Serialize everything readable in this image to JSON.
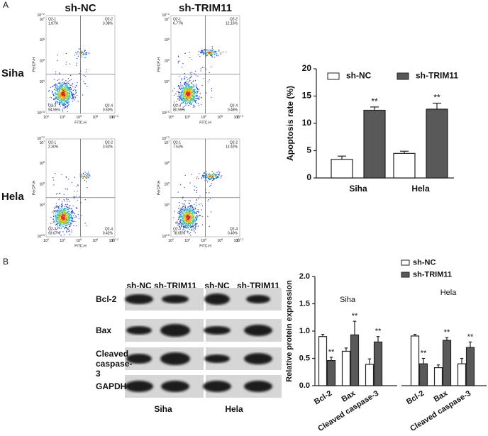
{
  "panels": [
    "A",
    "B"
  ],
  "flow": {
    "columns": [
      "sh-NC",
      "sh-TRIM11"
    ],
    "rows": [
      "Siha",
      "Hela"
    ],
    "x_label": "FITC-H",
    "y_label": "PerCP-H",
    "x_ticks": [
      {
        "base": "10",
        "exp": "3"
      },
      {
        "base": "10",
        "exp": "4"
      },
      {
        "base": "10",
        "exp": "5"
      },
      {
        "base": "10",
        "exp": "6"
      },
      {
        "base": "10",
        "exp": "7"
      },
      {
        "base": "10",
        "exp": "7.2"
      }
    ],
    "y_ticks": [
      {
        "base": "10",
        "exp": "2.5"
      },
      {
        "base": "10",
        "exp": "4"
      },
      {
        "base": "10",
        "exp": "5"
      },
      {
        "base": "10",
        "exp": "6"
      },
      {
        "base": "10",
        "exp": "7"
      },
      {
        "base": "10",
        "exp": "7.2"
      }
    ],
    "quadrants": [
      "Q2-1",
      "Q2-2",
      "Q2-3",
      "Q2-4"
    ],
    "plots": [
      [
        "1.87%",
        "3.08%",
        "94.55%",
        "0.50%"
      ],
      [
        "6.77%",
        "12.16%",
        "80.55%",
        "0.48%"
      ],
      [
        "2.30%",
        "3.62%",
        "93.67%",
        "0.42%"
      ],
      [
        "7.53%",
        "13.42%",
        "78.65%",
        "0.40%"
      ]
    ]
  },
  "western": {
    "columns": [
      "sh-NC",
      "sh-TRIM11",
      "sh-NC",
      "sh-TRIM11"
    ],
    "proteins": [
      "Bcl-2",
      "Bax",
      "Cleaved caspase-3",
      "GAPDH"
    ],
    "cells": [
      "Siha",
      "Hela"
    ]
  },
  "chart_data": [
    {
      "type": "bar",
      "y_label": "Apoptosis rate (%)",
      "categories": [
        "Siha",
        "Hela"
      ],
      "series": [
        {
          "name": "sh-NC",
          "color": "#ffffff",
          "values": [
            3.4,
            4.5
          ],
          "errors": [
            0.6,
            0.4
          ]
        },
        {
          "name": "sh-TRIM11",
          "color": "#595959",
          "values": [
            12.4,
            12.6
          ],
          "errors": [
            0.6,
            1.1
          ],
          "annotations": [
            "**",
            "**"
          ]
        }
      ],
      "ylim": [
        0,
        20
      ],
      "yticks": [
        0,
        5,
        10,
        15,
        20
      ]
    },
    {
      "type": "bar",
      "y_label": "Relative protein expression",
      "groups": [
        "Siha",
        "Hela"
      ],
      "categories": [
        "Bcl-2",
        "Bax",
        "Cleaved caspase-3",
        "Bcl-2",
        "Bax",
        "Cleaved caspase-3"
      ],
      "series": [
        {
          "name": "sh-NC",
          "color": "#ffffff",
          "values": [
            0.9,
            0.63,
            0.39,
            0.91,
            0.33,
            0.4
          ],
          "errors": [
            0.04,
            0.06,
            0.1,
            0.03,
            0.05,
            0.1
          ]
        },
        {
          "name": "sh-TRIM11",
          "color": "#595959",
          "values": [
            0.46,
            0.93,
            0.8,
            0.4,
            0.83,
            0.7
          ],
          "errors": [
            0.06,
            0.25,
            0.1,
            0.1,
            0.05,
            0.1
          ],
          "annotations": [
            "**",
            "**",
            "**",
            "**",
            "**",
            "**"
          ]
        }
      ],
      "ylim": [
        0,
        2
      ],
      "yticks": [
        {
          "value": 0,
          "label": "0.0"
        },
        {
          "value": 0.5,
          "label": "0.5"
        },
        {
          "value": 1,
          "label": "1.0"
        },
        {
          "value": 1.5,
          "label": "1.5"
        },
        {
          "value": 2,
          "label": "2.0"
        }
      ]
    }
  ]
}
